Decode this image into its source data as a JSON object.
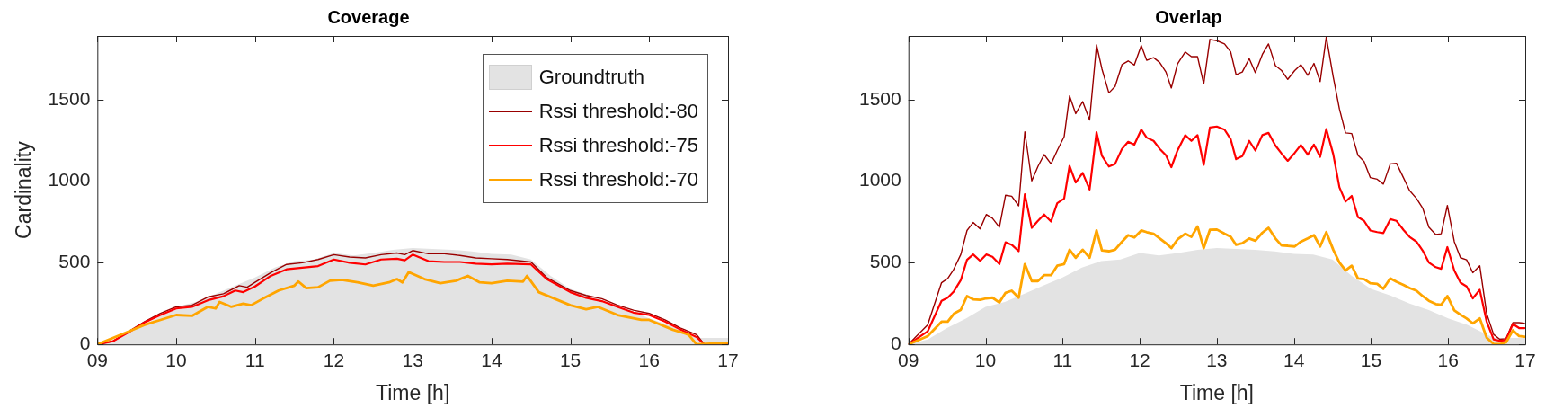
{
  "chart_data": [
    {
      "type": "line",
      "title": "Coverage",
      "xlabel": "Time [h]",
      "ylabel": "Cardinality",
      "xlim": [
        9,
        17
      ],
      "ylim": [
        0,
        1890
      ],
      "xticks": [
        {
          "value": 9,
          "label": "09"
        },
        10,
        11,
        12,
        13,
        14,
        15,
        16,
        17
      ],
      "yticks": [
        0,
        500,
        1000,
        1500
      ],
      "grid": false,
      "legend": "top right",
      "series": [
        {
          "name": "Groundtruth",
          "type": "area",
          "color": "#e3e3e3",
          "x": [
            9,
            9.25,
            9.5,
            9.75,
            10,
            10.25,
            10.5,
            10.75,
            11,
            11.25,
            11.5,
            11.75,
            12,
            12.25,
            12.5,
            12.75,
            13,
            13.25,
            13.5,
            13.75,
            14,
            14.25,
            14.5,
            14.75,
            15,
            15.25,
            15.5,
            15.75,
            16,
            16.25,
            16.5,
            16.6,
            16.75,
            17
          ],
          "values": [
            0,
            30,
            100,
            160,
            230,
            260,
            310,
            360,
            410,
            470,
            510,
            520,
            560,
            545,
            560,
            580,
            590,
            585,
            580,
            570,
            555,
            550,
            520,
            420,
            340,
            300,
            250,
            210,
            160,
            120,
            60,
            40,
            40,
            40
          ]
        },
        {
          "name": "Rssi threshold:-80",
          "color": "#990000",
          "x": [
            9,
            9.2,
            9.4,
            9.6,
            9.8,
            10,
            10.2,
            10.4,
            10.6,
            10.8,
            10.9,
            11,
            11.2,
            11.4,
            11.6,
            11.8,
            12,
            12.2,
            12.4,
            12.6,
            12.8,
            12.9,
            13,
            13.2,
            13.4,
            13.6,
            13.8,
            14,
            14.2,
            14.5,
            14.7,
            15,
            15.2,
            15.4,
            15.6,
            15.8,
            16,
            16.2,
            16.4,
            16.6,
            16.7,
            17
          ],
          "values": [
            0,
            20,
            80,
            140,
            190,
            230,
            240,
            290,
            310,
            360,
            350,
            380,
            440,
            490,
            500,
            520,
            550,
            535,
            530,
            550,
            560,
            550,
            575,
            555,
            555,
            545,
            530,
            525,
            520,
            505,
            410,
            330,
            300,
            280,
            240,
            210,
            190,
            150,
            100,
            60,
            0,
            0
          ]
        },
        {
          "name": "Rssi threshold:-75",
          "color": "#ff0000",
          "x": [
            9,
            9.2,
            9.4,
            9.6,
            9.8,
            10,
            10.2,
            10.4,
            10.6,
            10.75,
            10.85,
            11,
            11.2,
            11.4,
            11.6,
            11.8,
            12,
            12.2,
            12.4,
            12.6,
            12.8,
            12.9,
            13,
            13.2,
            13.4,
            13.6,
            13.8,
            14,
            14.2,
            14.5,
            14.7,
            15,
            15.2,
            15.4,
            15.6,
            15.8,
            16,
            16.2,
            16.4,
            16.6,
            16.7,
            17
          ],
          "values": [
            0,
            20,
            75,
            135,
            180,
            220,
            230,
            270,
            295,
            330,
            320,
            355,
            420,
            460,
            470,
            480,
            520,
            500,
            490,
            520,
            525,
            515,
            550,
            510,
            505,
            505,
            495,
            490,
            495,
            490,
            400,
            320,
            285,
            265,
            230,
            195,
            180,
            140,
            90,
            45,
            0,
            0
          ]
        },
        {
          "name": "Rssi threshold:-70",
          "color": "#ffa500",
          "x": [
            9,
            9.4,
            9.6,
            9.8,
            10,
            10.2,
            10.4,
            10.5,
            10.55,
            10.7,
            10.85,
            10.95,
            11.1,
            11.3,
            11.5,
            11.55,
            11.65,
            11.8,
            11.95,
            12.1,
            12.3,
            12.5,
            12.7,
            12.8,
            12.87,
            12.95,
            13.15,
            13.35,
            13.55,
            13.7,
            13.85,
            14,
            14.2,
            14.4,
            14.45,
            14.6,
            15,
            15.2,
            15.35,
            15.6,
            15.9,
            16,
            16.3,
            16.5,
            16.6,
            17
          ],
          "values": [
            0,
            80,
            120,
            150,
            180,
            175,
            230,
            220,
            260,
            230,
            250,
            240,
            280,
            330,
            360,
            385,
            345,
            350,
            390,
            395,
            380,
            360,
            380,
            400,
            380,
            443,
            400,
            375,
            390,
            420,
            380,
            375,
            390,
            385,
            420,
            320,
            240,
            215,
            230,
            180,
            150,
            150,
            90,
            60,
            0,
            10
          ]
        }
      ]
    },
    {
      "type": "line",
      "title": "Overlap",
      "xlabel": "Time [h]",
      "xlim": [
        9,
        17
      ],
      "ylim": [
        0,
        1890
      ],
      "xticks": [
        {
          "value": 9,
          "label": "09"
        },
        10,
        11,
        12,
        13,
        14,
        15,
        16,
        17
      ],
      "yticks": [
        0,
        500,
        1000,
        1500
      ],
      "grid": false,
      "series": [
        {
          "type": "area",
          "color": "#e3e3e3",
          "x": [
            9,
            9.25,
            9.5,
            9.75,
            10,
            10.25,
            10.5,
            10.75,
            11,
            11.25,
            11.5,
            11.75,
            12,
            12.25,
            12.5,
            12.75,
            13,
            13.25,
            13.5,
            13.75,
            14,
            14.25,
            14.5,
            14.75,
            15,
            15.25,
            15.5,
            15.75,
            16,
            16.25,
            16.5,
            16.6,
            16.75,
            17
          ],
          "values": [
            0,
            30,
            100,
            160,
            230,
            260,
            310,
            360,
            410,
            470,
            510,
            520,
            560,
            545,
            560,
            580,
            590,
            585,
            580,
            570,
            555,
            550,
            520,
            420,
            340,
            300,
            250,
            210,
            160,
            120,
            60,
            40,
            40,
            40
          ]
        },
        {
          "color": "#990000",
          "x": [
            9,
            9.25,
            9.43,
            9.51,
            9.58,
            9.68,
            9.76,
            9.84,
            9.93,
            10.01,
            10.09,
            10.18,
            10.26,
            10.34,
            10.43,
            10.51,
            10.6,
            10.68,
            10.76,
            10.85,
            10.93,
            11.02,
            11.09,
            11.17,
            11.26,
            11.35,
            11.44,
            11.51,
            11.6,
            11.68,
            11.77,
            11.85,
            11.93,
            12.02,
            12.09,
            12.18,
            12.26,
            12.34,
            12.41,
            12.49,
            12.59,
            12.67,
            12.75,
            12.83,
            12.91,
            13,
            13.1,
            13.18,
            13.25,
            13.33,
            13.42,
            13.5,
            13.59,
            13.67,
            13.76,
            13.84,
            13.92,
            14.01,
            14.09,
            14.18,
            14.26,
            14.34,
            14.42,
            14.51,
            14.59,
            14.67,
            14.75,
            14.83,
            14.91,
            14.99,
            15.08,
            15.16,
            15.25,
            15.33,
            15.42,
            15.5,
            15.59,
            15.67,
            15.75,
            15.84,
            15.91,
            15.99,
            16.08,
            16.16,
            16.24,
            16.32,
            16.41,
            16.5,
            16.59,
            16.67,
            16.75,
            16.84,
            16.92,
            16.99
          ],
          "values": [
            0,
            120,
            378,
            404,
            453,
            551,
            698,
            747,
            708,
            796,
            773,
            718,
            914,
            908,
            849,
            1302,
            1002,
            1090,
            1163,
            1106,
            1188,
            1273,
            1522,
            1414,
            1488,
            1375,
            1835,
            1688,
            1541,
            1580,
            1714,
            1737,
            1712,
            1831,
            1741,
            1757,
            1727,
            1669,
            1571,
            1718,
            1792,
            1763,
            1763,
            1596,
            1869,
            1861,
            1841,
            1792,
            1653,
            1669,
            1751,
            1665,
            1776,
            1841,
            1708,
            1678,
            1624,
            1678,
            1714,
            1649,
            1722,
            1610,
            1884,
            1639,
            1443,
            1296,
            1292,
            1159,
            1120,
            1022,
            1012,
            982,
            1106,
            1110,
            1022,
            943,
            894,
            835,
            718,
            673,
            678,
            851,
            629,
            531,
            518,
            439,
            482,
            188,
            61,
            31,
            35,
            133,
            133,
            129
          ]
        },
        {
          "color": "#ff0000",
          "x": [
            9,
            9.25,
            9.43,
            9.51,
            9.59,
            9.68,
            9.76,
            9.84,
            9.93,
            10.01,
            10.09,
            10.18,
            10.26,
            10.34,
            10.43,
            10.51,
            10.6,
            10.68,
            10.76,
            10.85,
            10.93,
            11.02,
            11.09,
            11.17,
            11.26,
            11.35,
            11.44,
            11.51,
            11.6,
            11.68,
            11.77,
            11.85,
            11.93,
            12.02,
            12.09,
            12.18,
            12.26,
            12.34,
            12.41,
            12.49,
            12.59,
            12.67,
            12.75,
            12.83,
            12.91,
            13,
            13.1,
            13.18,
            13.25,
            13.33,
            13.42,
            13.5,
            13.59,
            13.67,
            13.76,
            13.84,
            13.92,
            14.01,
            14.09,
            14.18,
            14.26,
            14.34,
            14.42,
            14.51,
            14.59,
            14.67,
            14.75,
            14.83,
            14.91,
            14.99,
            15.08,
            15.16,
            15.25,
            15.33,
            15.42,
            15.5,
            15.59,
            15.67,
            15.75,
            15.84,
            15.91,
            15.99,
            16.08,
            16.16,
            16.24,
            16.32,
            16.41,
            16.5,
            16.59,
            16.67,
            16.75,
            16.84,
            16.92,
            16.99
          ],
          "values": [
            0,
            80,
            267,
            286,
            325,
            394,
            518,
            551,
            512,
            551,
            537,
            492,
            626,
            610,
            571,
            920,
            714,
            757,
            796,
            753,
            865,
            894,
            1094,
            992,
            1051,
            949,
            1300,
            1155,
            1090,
            1106,
            1198,
            1241,
            1224,
            1316,
            1267,
            1247,
            1198,
            1159,
            1086,
            1188,
            1282,
            1247,
            1282,
            1100,
            1329,
            1335,
            1316,
            1257,
            1135,
            1153,
            1247,
            1188,
            1282,
            1296,
            1218,
            1169,
            1125,
            1173,
            1222,
            1163,
            1224,
            1149,
            1320,
            1165,
            963,
            875,
            910,
            780,
            757,
            698,
            688,
            682,
            767,
            757,
            702,
            659,
            629,
            575,
            502,
            473,
            463,
            596,
            453,
            378,
            355,
            282,
            335,
            139,
            31,
            22,
            27,
            125,
            100,
            100
          ]
        },
        {
          "color": "#ffa500",
          "x": [
            9,
            9.25,
            9.43,
            9.51,
            9.59,
            9.68,
            9.76,
            9.84,
            9.93,
            10.01,
            10.09,
            10.18,
            10.26,
            10.34,
            10.43,
            10.51,
            10.6,
            10.68,
            10.76,
            10.85,
            10.93,
            11.02,
            11.09,
            11.17,
            11.26,
            11.35,
            11.44,
            11.51,
            11.6,
            11.68,
            11.77,
            11.85,
            11.93,
            12.02,
            12.09,
            12.18,
            12.26,
            12.34,
            12.41,
            12.49,
            12.59,
            12.67,
            12.75,
            12.83,
            12.91,
            13,
            13.1,
            13.18,
            13.25,
            13.33,
            13.42,
            13.5,
            13.59,
            13.67,
            13.76,
            13.84,
            13.92,
            14.01,
            14.09,
            14.18,
            14.26,
            14.34,
            14.42,
            14.51,
            14.59,
            14.67,
            14.75,
            14.83,
            14.91,
            14.99,
            15.08,
            15.16,
            15.25,
            15.33,
            15.42,
            15.5,
            15.59,
            15.67,
            15.75,
            15.84,
            15.91,
            15.99,
            16.08,
            16.16,
            16.24,
            16.32,
            16.41,
            16.5,
            16.59,
            16.67,
            16.75,
            16.84,
            16.92,
            16.99
          ],
          "values": [
            0,
            51,
            139,
            139,
            188,
            212,
            296,
            276,
            273,
            282,
            286,
            257,
            316,
            329,
            286,
            492,
            388,
            388,
            424,
            424,
            482,
            492,
            580,
            531,
            580,
            531,
            698,
            576,
            571,
            580,
            629,
            669,
            655,
            698,
            688,
            678,
            649,
            620,
            590,
            643,
            678,
            659,
            722,
            590,
            702,
            704,
            678,
            659,
            610,
            620,
            649,
            635,
            684,
            714,
            649,
            606,
            604,
            600,
            629,
            649,
            669,
            600,
            688,
            580,
            502,
            453,
            482,
            404,
            400,
            375,
            371,
            341,
            404,
            384,
            365,
            345,
            329,
            296,
            267,
            247,
            243,
            296,
            208,
            182,
            159,
            129,
            159,
            41,
            2,
            2,
            12,
            86,
            51,
            47
          ]
        }
      ]
    }
  ]
}
